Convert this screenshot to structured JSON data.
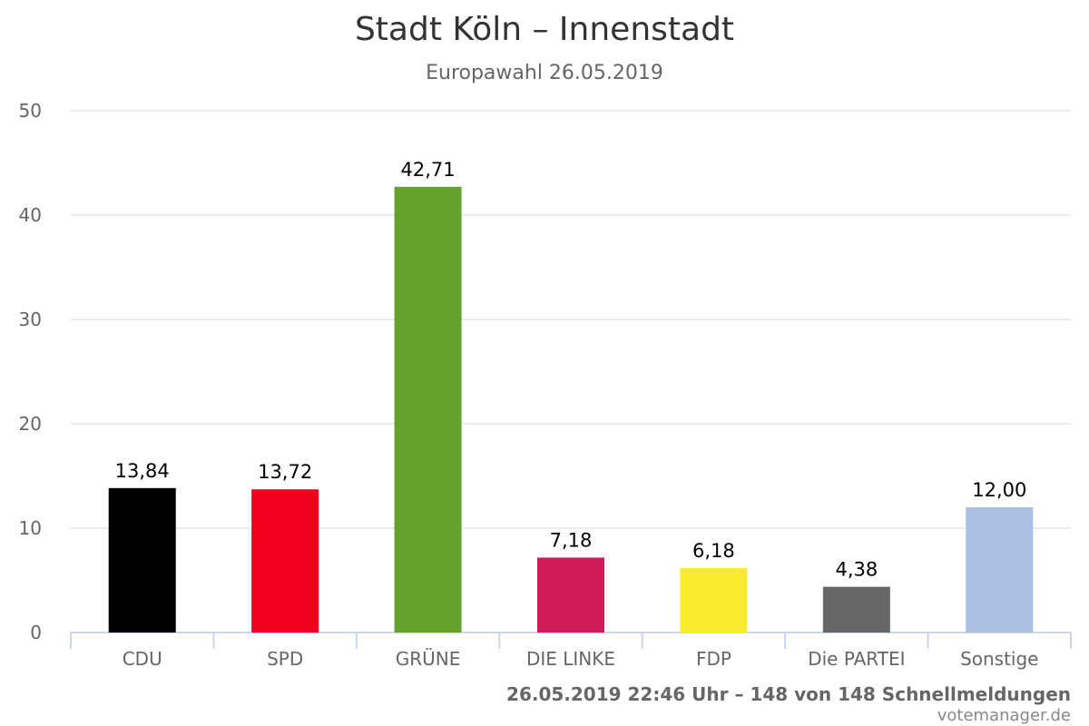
{
  "chart_data": {
    "type": "bar",
    "title": "Stadt Köln – Innenstadt",
    "subtitle": "Europawahl 26.05.2019",
    "categories": [
      "CDU",
      "SPD",
      "GRÜNE",
      "DIE LINKE",
      "FDP",
      "Die PARTEI",
      "Sonstige"
    ],
    "values": [
      13.84,
      13.72,
      42.71,
      7.18,
      6.18,
      4.38,
      12.0
    ],
    "value_labels": [
      "13,84",
      "13,72",
      "42,71",
      "7,18",
      "6,18",
      "4,38",
      "12,00"
    ],
    "colors": [
      "#000000",
      "#f0001c",
      "#64a12d",
      "#d01c5a",
      "#faeb2e",
      "#666666",
      "#abbee3"
    ],
    "ylim": [
      0,
      50
    ],
    "yticks": [
      0,
      10,
      20,
      30,
      40,
      50
    ],
    "grid": true,
    "legend": "none"
  },
  "footer": {
    "credits": "26.05.2019 22:46 Uhr – 148 von 148 Schnellmeldungen",
    "source": "votemanager.de"
  }
}
